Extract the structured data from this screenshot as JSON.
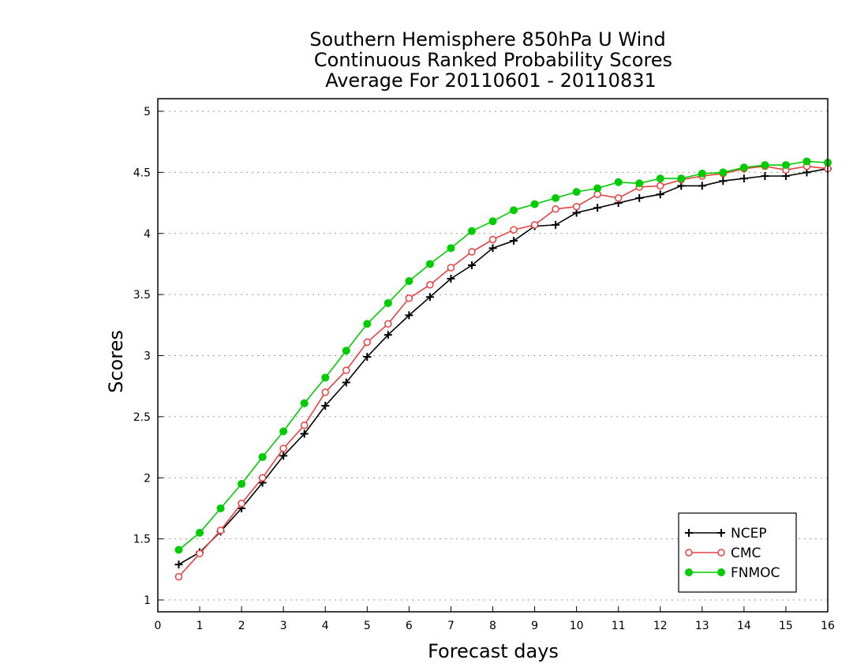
{
  "chart_data": {
    "type": "line",
    "title": [
      "Southern Hemisphere 850hPa U Wind",
      "Continuous Ranked Probability Scores",
      "Average For 20110601 - 20110831"
    ],
    "xlabel": "Forecast days",
    "ylabel": "Scores",
    "xlim": [
      0,
      16
    ],
    "ylim": [
      1,
      5
    ],
    "xticks": [
      0,
      1,
      2,
      3,
      4,
      5,
      6,
      7,
      8,
      9,
      10,
      11,
      12,
      13,
      14,
      15,
      16
    ],
    "yticks": [
      1,
      1.5,
      2,
      2.5,
      3,
      3.5,
      4,
      4.5,
      5
    ],
    "grid": "horizontal dotted",
    "legend_position": "bottom-right",
    "x": [
      0.5,
      1,
      1.5,
      2,
      2.5,
      3,
      3.5,
      4,
      4.5,
      5,
      5.5,
      6,
      6.5,
      7,
      7.5,
      8,
      8.5,
      9,
      9.5,
      10,
      10.5,
      11,
      11.5,
      12,
      12.5,
      13,
      13.5,
      14,
      14.5,
      15,
      15.5,
      16
    ],
    "series": [
      {
        "name": "NCEP",
        "color": "#000000",
        "marker": "plus",
        "values": [
          1.29,
          1.39,
          1.56,
          1.75,
          1.96,
          2.18,
          2.36,
          2.59,
          2.78,
          2.99,
          3.17,
          3.33,
          3.48,
          3.63,
          3.74,
          3.88,
          3.94,
          4.06,
          4.07,
          4.17,
          4.21,
          4.25,
          4.29,
          4.32,
          4.39,
          4.39,
          4.43,
          4.45,
          4.47,
          4.47,
          4.5,
          4.53
        ]
      },
      {
        "name": "CMC",
        "color": "#e84040",
        "marker": "open-circle",
        "values": [
          1.19,
          1.38,
          1.57,
          1.79,
          2.0,
          2.24,
          2.43,
          2.7,
          2.88,
          3.11,
          3.26,
          3.47,
          3.58,
          3.72,
          3.85,
          3.95,
          4.03,
          4.07,
          4.2,
          4.22,
          4.32,
          4.29,
          4.38,
          4.39,
          4.44,
          4.47,
          4.49,
          4.53,
          4.55,
          4.52,
          4.55,
          4.53
        ]
      },
      {
        "name": "FNMOC",
        "color": "#00cc00",
        "marker": "filled-circle",
        "values": [
          1.41,
          1.55,
          1.75,
          1.95,
          2.17,
          2.38,
          2.61,
          2.82,
          3.04,
          3.26,
          3.43,
          3.61,
          3.75,
          3.88,
          4.02,
          4.1,
          4.19,
          4.24,
          4.29,
          4.34,
          4.37,
          4.42,
          4.41,
          4.45,
          4.45,
          4.49,
          4.5,
          4.54,
          4.56,
          4.56,
          4.59,
          4.58
        ]
      }
    ]
  }
}
